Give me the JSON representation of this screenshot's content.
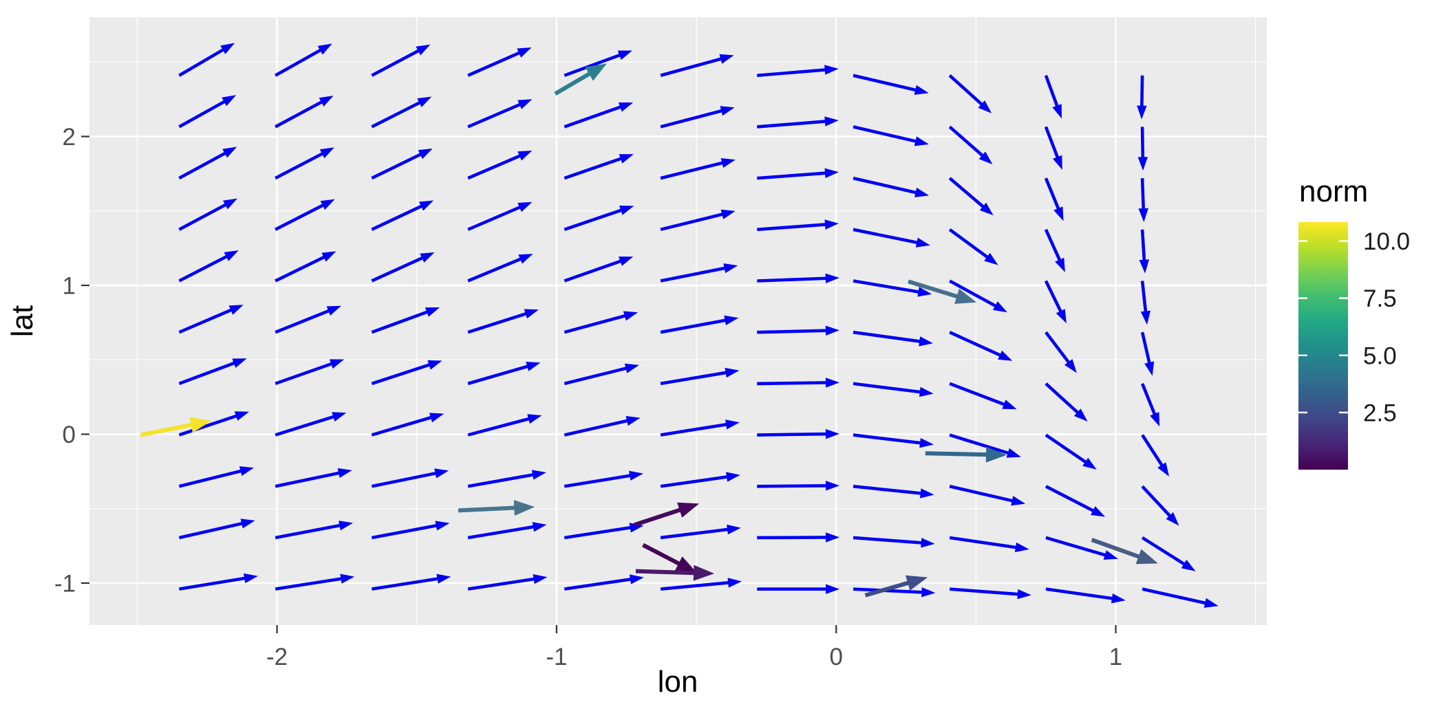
{
  "chart_data": {
    "type": "quiver",
    "title": "",
    "xlabel": "lon",
    "ylabel": "lat",
    "x_tick_labels": [
      "-2",
      "-1",
      "0",
      "1"
    ],
    "x_tick_values": [
      -2,
      -1,
      0,
      1
    ],
    "y_tick_labels": [
      "2",
      "1",
      "0",
      "-1"
    ],
    "y_tick_values": [
      2,
      1,
      0,
      -1
    ],
    "x_minor_gridlines": [
      -2.5,
      -1.5,
      -0.5,
      0.5,
      1.5
    ],
    "y_minor_gridlines": [
      -0.5,
      0.5,
      1.5,
      2.5
    ],
    "x_range": [
      -2.67,
      1.54
    ],
    "y_range": [
      -1.28,
      2.8
    ],
    "grid_on": true,
    "style": {
      "panel_bg": "#EBEBEB",
      "grid_color": "#FFFFFF",
      "axis_tick_color": "#333333",
      "tick_label_color": "#4D4D4D",
      "title_color": "#000000",
      "field_arrow_color": "#0202F2"
    },
    "field": {
      "description": "smoothed vector field, uniform blue arrows on 11x11 grid, tail at grid point, constant length in data units",
      "arrow_length": 0.295,
      "lons": [
        -2.35,
        -2.006,
        -1.661,
        -1.317,
        -0.972,
        -0.628,
        -0.283,
        0.061,
        0.406,
        0.75,
        1.095
      ],
      "lats": [
        2.41,
        2.065,
        1.72,
        1.375,
        1.03,
        0.685,
        0.34,
        -0.005,
        -0.35,
        -0.695,
        -1.04
      ],
      "angles_deg": [
        [
          47.7,
          46.5,
          44.8,
          39.6,
          34.6,
          27.3,
          8.8,
          -23.7,
          -59.4,
          -78.9,
          -90.5
        ],
        [
          46.3,
          45.2,
          43.5,
          38.9,
          33.6,
          26.2,
          8.5,
          -23.5,
          -58.7,
          -78.5,
          -89.5
        ],
        [
          45.6,
          44.4,
          42.5,
          38.9,
          33.0,
          24.9,
          7.9,
          -23.3,
          -58.0,
          -77.7,
          -88.9
        ],
        [
          45.1,
          43.8,
          41.5,
          38.9,
          32.6,
          24.9,
          7.9,
          -21.0,
          -54.0,
          -76.5,
          -88.1
        ],
        [
          44.0,
          42.5,
          40.5,
          38.0,
          33.5,
          20.5,
          4.0,
          -17.5,
          -45.7,
          -75.5,
          -86.7
        ],
        [
          38.8,
          37.0,
          34.5,
          31.0,
          27.0,
          19.1,
          2.6,
          -14.5,
          -40.5,
          -68.0,
          -83.0
        ],
        [
          35.0,
          33.5,
          31.5,
          28.5,
          25.0,
          17.5,
          1.5,
          -13.2,
          -35.6,
          -59.6,
          -77.9
        ],
        [
          32.0,
          30.5,
          29.0,
          26.5,
          23.0,
          16.7,
          1.5,
          -12.6,
          -30.1,
          -52.0,
          -71.0
        ],
        [
          25.0,
          21.5,
          21.0,
          18.5,
          17.0,
          15.0,
          1.0,
          -11.0,
          -23.4,
          -44.0,
          -63.6
        ],
        [
          23.0,
          19.6,
          19.4,
          17.3,
          16.0,
          13.0,
          0.5,
          -8.0,
          -15.4,
          -28.8,
          -49.8
        ],
        [
          17.2,
          16.4,
          16.4,
          15.9,
          15.5,
          10.0,
          0.0,
          -5.0,
          -8.0,
          -14.9,
          -22.6
        ]
      ]
    },
    "outliers": [
      {
        "x1": -2.488,
        "y1": -0.005,
        "x2": -2.235,
        "y2": 0.09,
        "color": "#F4E329",
        "norm": 10.8
      },
      {
        "x1": -1.005,
        "y1": 2.287,
        "x2": -0.82,
        "y2": 2.49,
        "color": "#2E7F8D",
        "norm": 5.6
      },
      {
        "x1": 0.258,
        "y1": 1.026,
        "x2": 0.502,
        "y2": 0.886,
        "color": "#47708D",
        "norm": 4.2
      },
      {
        "x1": 0.319,
        "y1": -0.128,
        "x2": 0.61,
        "y2": -0.14,
        "color": "#31688E",
        "norm": 4.8
      },
      {
        "x1": -1.352,
        "y1": -0.512,
        "x2": -1.078,
        "y2": -0.488,
        "color": "#48758C",
        "norm": 4.5
      },
      {
        "x1": -0.722,
        "y1": -0.609,
        "x2": -0.49,
        "y2": -0.466,
        "color": "#46085C",
        "norm": 0.8
      },
      {
        "x1": -0.691,
        "y1": -0.744,
        "x2": -0.498,
        "y2": -0.932,
        "color": "#440556",
        "norm": 0.4
      },
      {
        "x1": -0.717,
        "y1": -0.92,
        "x2": -0.436,
        "y2": -0.936,
        "color": "#4A1A68",
        "norm": 1.1
      },
      {
        "x1": 0.104,
        "y1": -1.082,
        "x2": 0.327,
        "y2": -0.961,
        "color": "#3D4E8A",
        "norm": 2.4
      },
      {
        "x1": 0.914,
        "y1": -0.709,
        "x2": 1.151,
        "y2": -0.868,
        "color": "#475D85",
        "norm": 2.7
      }
    ],
    "legend": {
      "title": "norm",
      "position": "right",
      "labels": [
        "10.0",
        "7.5",
        "5.0",
        "2.5"
      ],
      "label_values": [
        10.0,
        7.5,
        5.0,
        2.5
      ],
      "range": [
        0.0,
        10.83
      ],
      "colormap": "viridis",
      "viridis_stops": [
        [
          0.0,
          "#440154"
        ],
        [
          0.1,
          "#482475"
        ],
        [
          0.2,
          "#414487"
        ],
        [
          0.3,
          "#35608D"
        ],
        [
          0.4,
          "#2A788E"
        ],
        [
          0.5,
          "#21908C"
        ],
        [
          0.6,
          "#22A884"
        ],
        [
          0.7,
          "#42BE71"
        ],
        [
          0.8,
          "#7AD151"
        ],
        [
          0.9,
          "#BBDF27"
        ],
        [
          1.0,
          "#FDE725"
        ]
      ],
      "bar_tick_color": "#FFFFFF"
    }
  }
}
